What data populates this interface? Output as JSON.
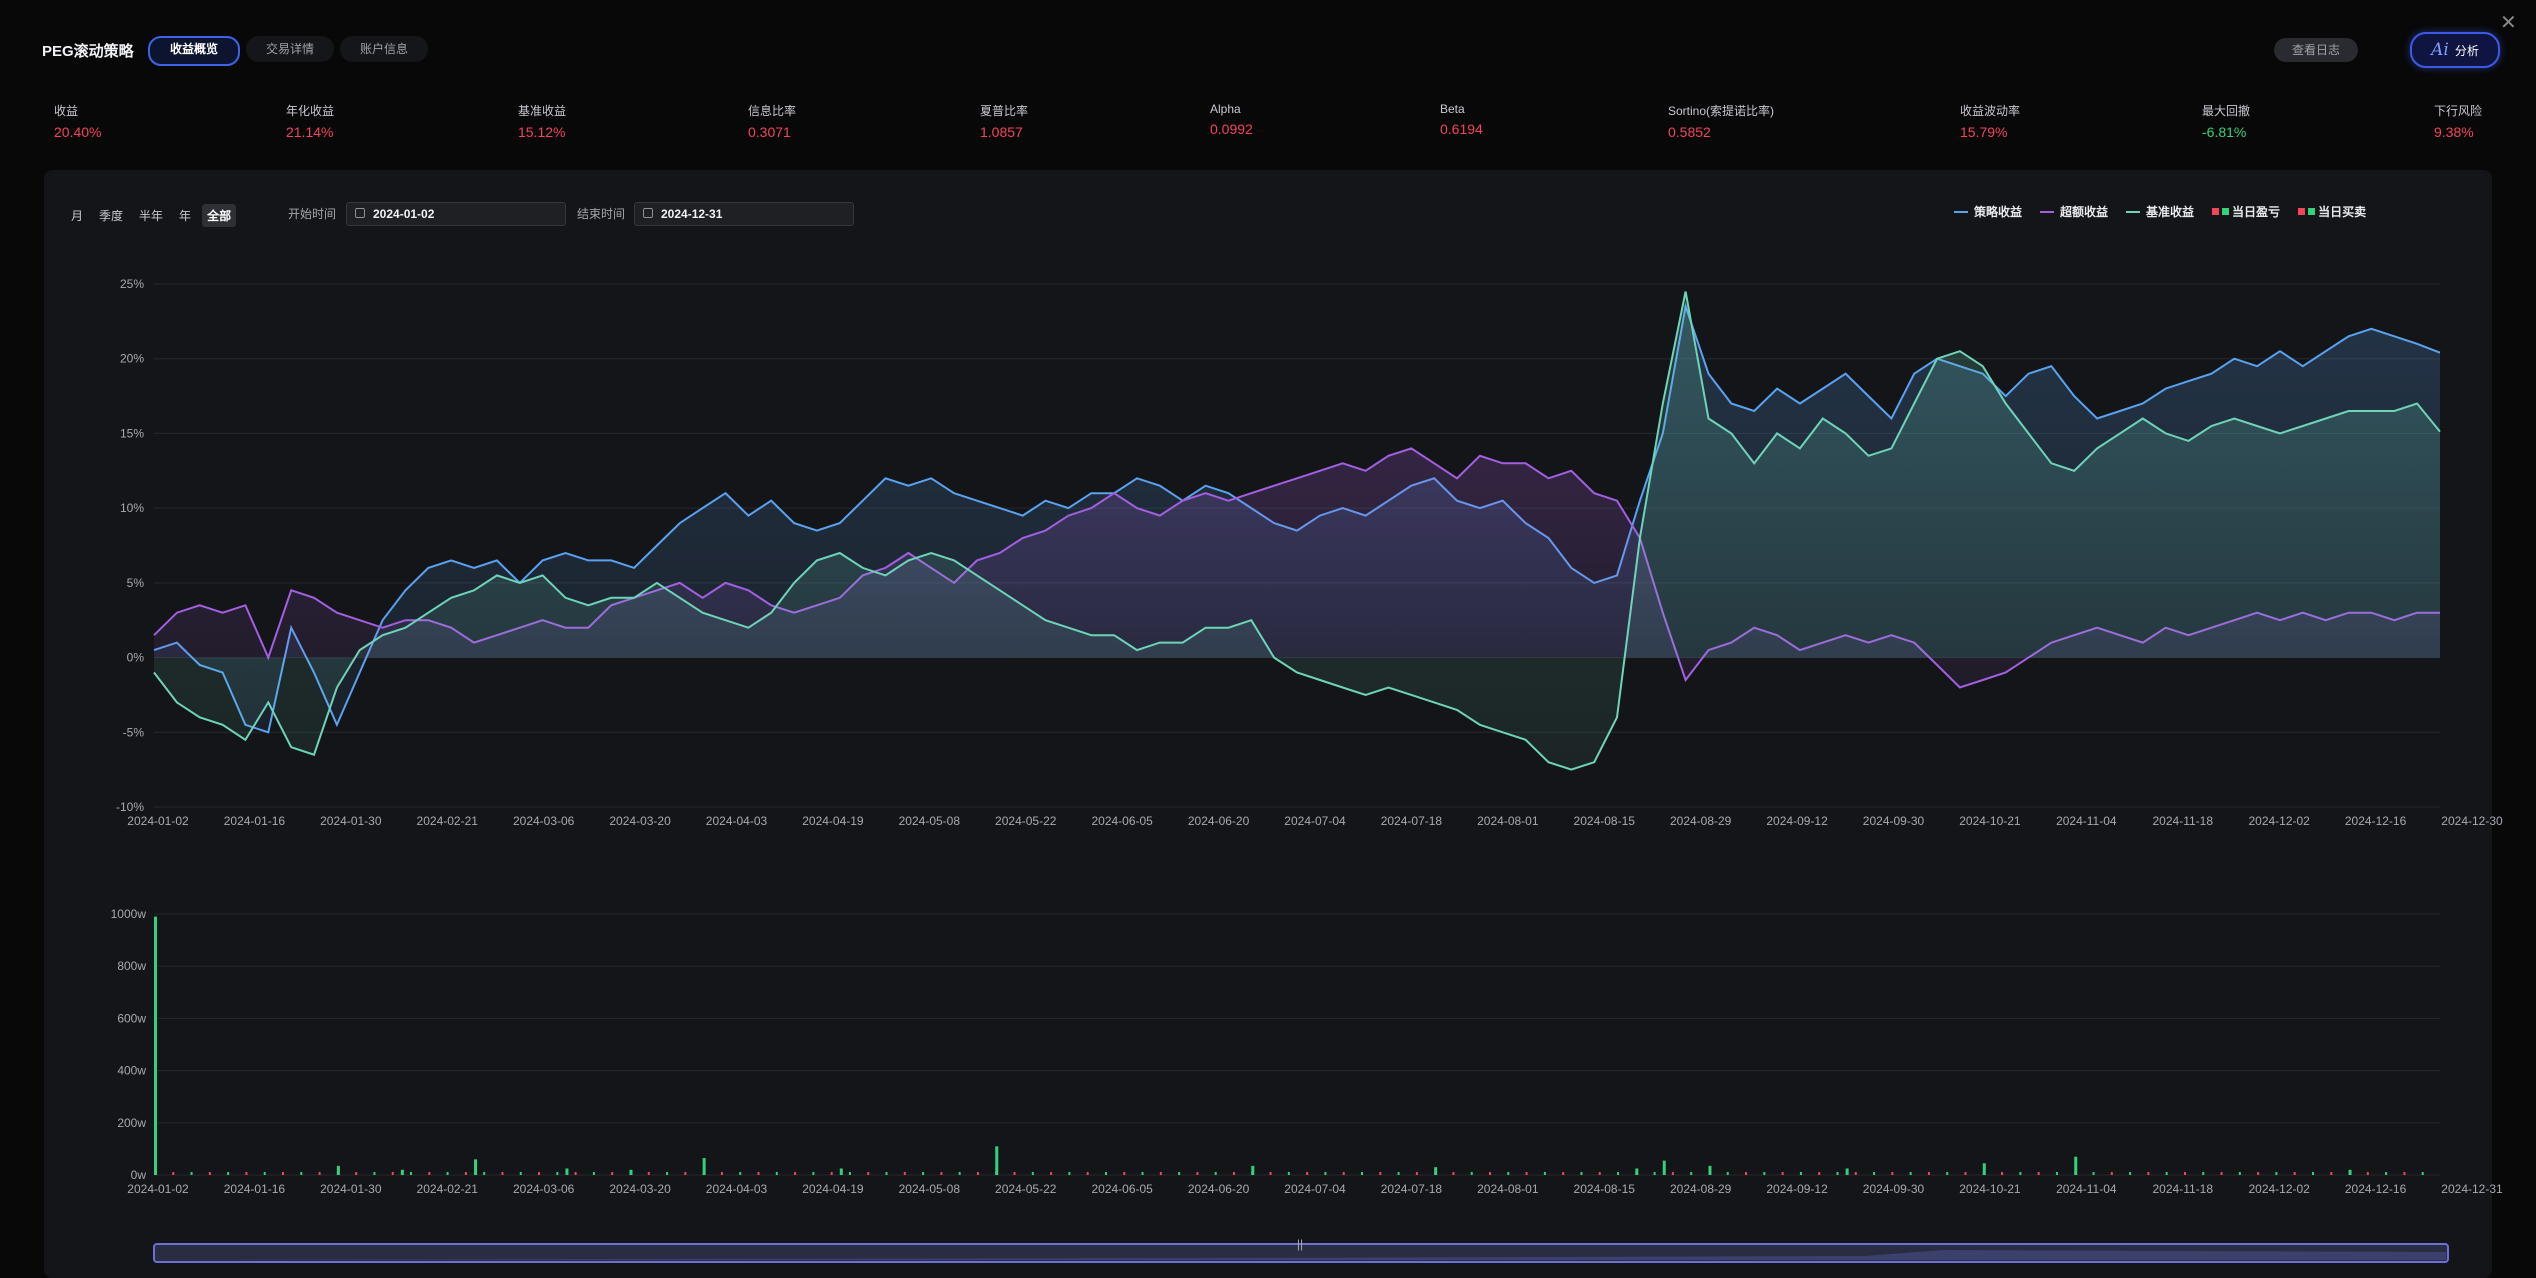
{
  "app": {
    "title": "PEG滚动策略",
    "tabs": [
      {
        "label": "收益概览",
        "active": true
      },
      {
        "label": "交易详情",
        "active": false
      },
      {
        "label": "账户信息",
        "active": false
      }
    ],
    "log_button": "查看日志",
    "ai_button": {
      "logo": "Ai",
      "label": "分析"
    },
    "close_icon": "close-icon"
  },
  "metrics": [
    {
      "label": "收益",
      "value": "20.40%",
      "color": "#f0455a"
    },
    {
      "label": "年化收益",
      "value": "21.14%",
      "color": "#f0455a"
    },
    {
      "label": "基准收益",
      "value": "15.12%",
      "color": "#f0455a"
    },
    {
      "label": "信息比率",
      "value": "0.3071",
      "color": "#f0455a"
    },
    {
      "label": "夏普比率",
      "value": "1.0857",
      "color": "#f0455a"
    },
    {
      "label": "Alpha",
      "value": "0.0992",
      "color": "#f0455a"
    },
    {
      "label": "Beta",
      "value": "0.6194",
      "color": "#f0455a"
    },
    {
      "label": "Sortino(索提诺比率)",
      "value": "0.5852",
      "color": "#f0455a"
    },
    {
      "label": "收益波动率",
      "value": "15.79%",
      "color": "#f0455a"
    },
    {
      "label": "最大回撤",
      "value": "-6.81%",
      "color": "#33d17a"
    },
    {
      "label": "下行风险",
      "value": "9.38%",
      "color": "#f0455a"
    }
  ],
  "filters": {
    "periods": [
      {
        "label": "月",
        "active": false
      },
      {
        "label": "季度",
        "active": false
      },
      {
        "label": "半年",
        "active": false
      },
      {
        "label": "年",
        "active": false
      },
      {
        "label": "全部",
        "active": true
      }
    ],
    "start_label": "开始时间",
    "start_value": "2024-01-02",
    "end_label": "结束时间",
    "end_value": "2024-12-31"
  },
  "legend": [
    {
      "label": "策略收益",
      "kind": "line",
      "color": "#5aa2f0"
    },
    {
      "label": "超额收益",
      "kind": "line",
      "color": "#a35fe0"
    },
    {
      "label": "基准收益",
      "kind": "line",
      "color": "#6ed4b8"
    },
    {
      "label": "当日盈亏",
      "kind": "squares",
      "colors": [
        "#f0455a",
        "#33d17a"
      ]
    },
    {
      "label": "当日买卖",
      "kind": "squares",
      "colors": [
        "#f0455a",
        "#33d17a"
      ]
    }
  ],
  "chart_data": [
    {
      "type": "line",
      "x_ticks": [
        "2024-01-02",
        "2024-01-16",
        "2024-01-30",
        "2024-02-21",
        "2024-03-06",
        "2024-03-20",
        "2024-04-03",
        "2024-04-19",
        "2024-05-08",
        "2024-05-22",
        "2024-06-05",
        "2024-06-20",
        "2024-07-04",
        "2024-07-18",
        "2024-08-01",
        "2024-08-15",
        "2024-08-29",
        "2024-09-12",
        "2024-09-30",
        "2024-10-21",
        "2024-11-04",
        "2024-11-18",
        "2024-12-02",
        "2024-12-16",
        "2024-12-30"
      ],
      "y_ticks": [
        "25%",
        "20%",
        "15%",
        "10%",
        "5%",
        "0%",
        "-5%",
        "-10%"
      ],
      "ylim": [
        -10,
        25
      ],
      "y_unit": "%",
      "series": [
        {
          "name": "策略收益",
          "color": "#5aa2f0",
          "values": [
            0.5,
            1,
            -0.5,
            -1,
            -4.5,
            -5,
            2,
            -1,
            -4.5,
            -1,
            2.5,
            4.5,
            6,
            6.5,
            6,
            6.5,
            5,
            6.5,
            7,
            6.5,
            6.5,
            6,
            7.5,
            9,
            10,
            11,
            9.5,
            10.5,
            9,
            8.5,
            9,
            10.5,
            12,
            11.5,
            12,
            11,
            10.5,
            10,
            9.5,
            10.5,
            10,
            11,
            11,
            12,
            11.5,
            10.5,
            11.5,
            11,
            10,
            9,
            8.5,
            9.5,
            10,
            9.5,
            10.5,
            11.5,
            12,
            10.5,
            10,
            10.5,
            9,
            8,
            6,
            5,
            5.5,
            10.5,
            15,
            23.5,
            19,
            17,
            16.5,
            18,
            17,
            18,
            19,
            17.5,
            16,
            19,
            20,
            19.5,
            19,
            17.5,
            19,
            19.5,
            17.5,
            16,
            16.5,
            17,
            18,
            18.5,
            19,
            20,
            19.5,
            20.5,
            19.5,
            20.5,
            21.5,
            22,
            21.5,
            21,
            20.4
          ]
        },
        {
          "name": "超额收益",
          "color": "#a35fe0",
          "values": [
            1.5,
            3,
            3.5,
            3,
            3.5,
            0,
            4.5,
            4,
            3,
            2.5,
            2,
            2.5,
            2.5,
            2,
            1,
            1.5,
            2,
            2.5,
            2,
            2,
            3.5,
            4,
            4.5,
            5,
            4,
            5,
            4.5,
            3.5,
            3,
            3.5,
            4,
            5.5,
            6,
            7,
            6,
            5,
            6.5,
            7,
            8,
            8.5,
            9.5,
            10,
            11,
            10,
            9.5,
            10.5,
            11,
            10.5,
            11,
            11.5,
            12,
            12.5,
            13,
            12.5,
            13.5,
            14,
            13,
            12,
            13.5,
            13,
            13,
            12,
            12.5,
            11,
            10.5,
            8,
            3,
            -1.5,
            0.5,
            1,
            2,
            1.5,
            0.5,
            1,
            1.5,
            1,
            1.5,
            1,
            -0.5,
            -2,
            -1.5,
            -1,
            0,
            1,
            1.5,
            2,
            1.5,
            1,
            2,
            1.5,
            2,
            2.5,
            3,
            2.5,
            3,
            2.5,
            3,
            3,
            2.5,
            3,
            3
          ]
        },
        {
          "name": "基准收益",
          "color": "#6ed4b8",
          "values": [
            -1,
            -3,
            -4,
            -4.5,
            -5.5,
            -3,
            -6,
            -6.5,
            -2,
            0.5,
            1.5,
            2,
            3,
            4,
            4.5,
            5.5,
            5,
            5.5,
            4,
            3.5,
            4,
            4,
            5,
            4,
            3,
            2.5,
            2,
            3,
            5,
            6.5,
            7,
            6,
            5.5,
            6.5,
            7,
            6.5,
            5.5,
            4.5,
            3.5,
            2.5,
            2,
            1.5,
            1.5,
            0.5,
            1,
            1,
            2,
            2,
            2.5,
            0,
            -1,
            -1.5,
            -2,
            -2.5,
            -2,
            -2.5,
            -3,
            -3.5,
            -4.5,
            -5,
            -5.5,
            -7,
            -7.5,
            -7,
            -4,
            8,
            17,
            24.5,
            16,
            15,
            13,
            15,
            14,
            16,
            15,
            13.5,
            14,
            17,
            20,
            20.5,
            19.5,
            17,
            15,
            13,
            12.5,
            14,
            15,
            16,
            15,
            14.5,
            15.5,
            16,
            15.5,
            15,
            15.5,
            16,
            16.5,
            16.5,
            16.5,
            17,
            15.12
          ]
        }
      ]
    },
    {
      "type": "bar",
      "x_ticks": [
        "2024-01-02",
        "2024-01-16",
        "2024-01-30",
        "2024-02-21",
        "2024-03-06",
        "2024-03-20",
        "2024-04-03",
        "2024-04-19",
        "2024-05-08",
        "2024-05-22",
        "2024-06-05",
        "2024-06-20",
        "2024-07-04",
        "2024-07-18",
        "2024-08-01",
        "2024-08-15",
        "2024-08-29",
        "2024-09-12",
        "2024-09-30",
        "2024-10-21",
        "2024-11-04",
        "2024-11-18",
        "2024-12-02",
        "2024-12-16",
        "2024-12-31"
      ],
      "y_ticks": [
        "1000w",
        "800w",
        "600w",
        "400w",
        "200w",
        "0w"
      ],
      "ylim": [
        0,
        1000
      ],
      "y_unit": "w",
      "series": [
        {
          "name": "当日买卖",
          "values_note": "daily trade volume; large spikes only",
          "points": [
            [
              0,
              990
            ],
            [
              20,
              35
            ],
            [
              27,
              20
            ],
            [
              35,
              60
            ],
            [
              45,
              25
            ],
            [
              52,
              20
            ],
            [
              60,
              65
            ],
            [
              75,
              25
            ],
            [
              92,
              110
            ],
            [
              120,
              35
            ],
            [
              140,
              30
            ],
            [
              162,
              25
            ],
            [
              165,
              55
            ],
            [
              170,
              35
            ],
            [
              185,
              25
            ],
            [
              200,
              45
            ],
            [
              210,
              70
            ],
            [
              240,
              20
            ]
          ]
        }
      ]
    }
  ],
  "slider": {
    "label": "||"
  }
}
